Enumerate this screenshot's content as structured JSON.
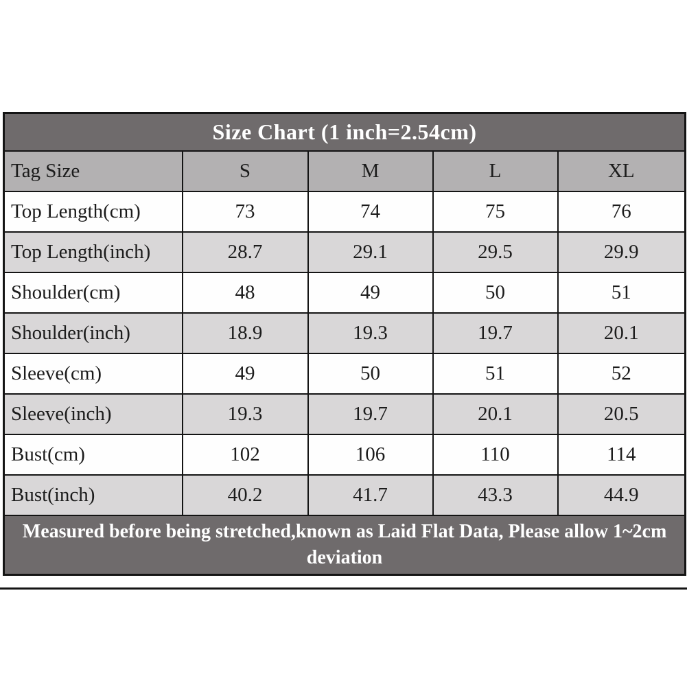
{
  "table": {
    "title": "Size Chart (1 inch=2.54cm)",
    "header_label": "Tag Size",
    "sizes": [
      "S",
      "M",
      "L",
      "XL"
    ],
    "rows": [
      {
        "label": "Top Length(cm)",
        "values": [
          "73",
          "74",
          "75",
          "76"
        ]
      },
      {
        "label": "Top Length(inch)",
        "values": [
          "28.7",
          "29.1",
          "29.5",
          "29.9"
        ]
      },
      {
        "label": "Shoulder(cm)",
        "values": [
          "48",
          "49",
          "50",
          "51"
        ]
      },
      {
        "label": "Shoulder(inch)",
        "values": [
          "18.9",
          "19.3",
          "19.7",
          "20.1"
        ]
      },
      {
        "label": "Sleeve(cm)",
        "values": [
          "49",
          "50",
          "51",
          "52"
        ]
      },
      {
        "label": "Sleeve(inch)",
        "values": [
          "19.3",
          "19.7",
          "20.1",
          "20.5"
        ]
      },
      {
        "label": "Bust(cm)",
        "values": [
          "102",
          "106",
          "110",
          "114"
        ]
      },
      {
        "label": "Bust(inch)",
        "values": [
          "40.2",
          "41.7",
          "43.3",
          "44.9"
        ]
      }
    ],
    "footer": "Measured before being stretched,known as Laid Flat Data, Please allow 1~2cm deviation"
  },
  "colors": {
    "title_bg": "#6f6b6c",
    "title_text": "#ffffff",
    "header_row_bg": "#b3b1b2",
    "row_white_bg": "#fefefe",
    "row_gray_bg": "#d9d7d8",
    "footer_bg": "#6f6b6c",
    "footer_text": "#ffffff",
    "border": "#141414",
    "cell_text": "#1c1c1c",
    "page_bg": "#ffffff"
  },
  "chart_data": {
    "type": "table",
    "title": "Size Chart (1 inch=2.54cm)",
    "columns": [
      "Tag Size",
      "S",
      "M",
      "L",
      "XL"
    ],
    "rows": [
      [
        "Top Length(cm)",
        73,
        74,
        75,
        76
      ],
      [
        "Top Length(inch)",
        28.7,
        29.1,
        29.5,
        29.9
      ],
      [
        "Shoulder(cm)",
        48,
        49,
        50,
        51
      ],
      [
        "Shoulder(inch)",
        18.9,
        19.3,
        19.7,
        20.1
      ],
      [
        "Sleeve(cm)",
        49,
        50,
        51,
        52
      ],
      [
        "Sleeve(inch)",
        19.3,
        19.7,
        20.1,
        20.5
      ],
      [
        "Bust(cm)",
        102,
        106,
        110,
        114
      ],
      [
        "Bust(inch)",
        40.2,
        41.7,
        43.3,
        44.9
      ]
    ],
    "footnote": "Measured before being stretched,known as Laid Flat Data, Please allow 1~2cm deviation",
    "layout": "merged title row on top, gray header row, alternating white/gray data rows, merged dark footer row"
  }
}
